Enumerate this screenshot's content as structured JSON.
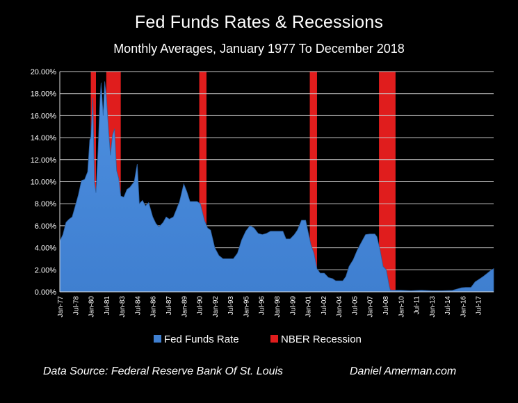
{
  "colors": {
    "background": "#000000",
    "area": "#3f7fd0",
    "recession": "#e01d1d",
    "grid": "#c8c8c8"
  },
  "chart_data": {
    "type": "area",
    "title": "Fed Funds Rates & Recessions",
    "subtitle": "Monthly Averages, January 1977 To December 2018",
    "source": "Data Source:  Federal Reserve Bank Of St. Louis",
    "credit": "Daniel Amerman.com",
    "ylim": [
      0,
      20
    ],
    "yticks": [
      "0.00%",
      "2.00%",
      "4.00%",
      "6.00%",
      "8.00%",
      "10.00%",
      "12.00%",
      "14.00%",
      "16.00%",
      "18.00%",
      "20.00%"
    ],
    "xlim": [
      1977.0,
      2019.0
    ],
    "grid": true,
    "legend_position": "bottom",
    "xticks": [
      {
        "label": "Jan-77",
        "x": 1977.0
      },
      {
        "label": "Jul-78",
        "x": 1978.5
      },
      {
        "label": "Jan-80",
        "x": 1980.0
      },
      {
        "label": "Jul-81",
        "x": 1981.5
      },
      {
        "label": "Jan-83",
        "x": 1983.0
      },
      {
        "label": "Jul-84",
        "x": 1984.5
      },
      {
        "label": "Jan-86",
        "x": 1986.0
      },
      {
        "label": "Jul-87",
        "x": 1987.5
      },
      {
        "label": "Jan-89",
        "x": 1989.0
      },
      {
        "label": "Jul-90",
        "x": 1990.5
      },
      {
        "label": "Jan-92",
        "x": 1992.0
      },
      {
        "label": "Jul-93",
        "x": 1993.5
      },
      {
        "label": "Jan-95",
        "x": 1995.0
      },
      {
        "label": "Jul-96",
        "x": 1996.5
      },
      {
        "label": "Jan-98",
        "x": 1998.0
      },
      {
        "label": "Jul-99",
        "x": 1999.5
      },
      {
        "label": "Jan-01",
        "x": 2001.0
      },
      {
        "label": "Jul-02",
        "x": 2002.5
      },
      {
        "label": "Jan-04",
        "x": 2004.0
      },
      {
        "label": "Jul-05",
        "x": 2005.5
      },
      {
        "label": "Jan-07",
        "x": 2007.0
      },
      {
        "label": "Jul-08",
        "x": 2008.5
      },
      {
        "label": "Jan-10",
        "x": 2010.0
      },
      {
        "label": "Jul-11",
        "x": 2011.5
      },
      {
        "label": "Jan-13",
        "x": 2013.0
      },
      {
        "label": "Jul-14",
        "x": 2014.5
      },
      {
        "label": "Jan-16",
        "x": 2016.0
      },
      {
        "label": "Jul-17",
        "x": 2017.5
      }
    ],
    "series": [
      {
        "name": "Fed Funds Rate",
        "x": [
          1977.0,
          1977.3,
          1977.6,
          1977.9,
          1978.2,
          1978.5,
          1978.8,
          1979.1,
          1979.4,
          1979.7,
          1979.9,
          1980.0,
          1980.2,
          1980.35,
          1980.5,
          1980.7,
          1980.9,
          1981.0,
          1981.2,
          1981.35,
          1981.5,
          1981.7,
          1981.9,
          1982.1,
          1982.3,
          1982.5,
          1982.7,
          1982.9,
          1983.2,
          1983.5,
          1983.8,
          1984.2,
          1984.5,
          1984.7,
          1985.0,
          1985.3,
          1985.6,
          1986.0,
          1986.3,
          1986.6,
          1987.0,
          1987.3,
          1987.6,
          1988.0,
          1988.3,
          1988.6,
          1989.0,
          1989.3,
          1989.6,
          1990.0,
          1990.3,
          1990.6,
          1991.0,
          1991.3,
          1991.6,
          1992.0,
          1992.4,
          1992.8,
          1993.3,
          1993.8,
          1994.2,
          1994.6,
          1995.0,
          1995.4,
          1995.8,
          1996.2,
          1996.6,
          1997.0,
          1997.4,
          1997.8,
          1998.2,
          1998.6,
          1998.9,
          1999.3,
          1999.7,
          2000.0,
          2000.4,
          2000.8,
          2001.0,
          2001.3,
          2001.6,
          2001.9,
          2002.2,
          2002.6,
          2003.0,
          2003.4,
          2003.7,
          2004.0,
          2004.4,
          2004.7,
          2005.0,
          2005.4,
          2005.8,
          2006.2,
          2006.6,
          2007.0,
          2007.5,
          2007.7,
          2008.0,
          2008.3,
          2008.6,
          2008.9,
          2009.0,
          2009.5,
          2010.0,
          2011.0,
          2012.0,
          2013.0,
          2014.0,
          2015.0,
          2015.9,
          2016.3,
          2016.8,
          2017.2,
          2017.6,
          2018.0,
          2018.4,
          2018.8,
          2019.0
        ],
        "values": [
          4.6,
          5.2,
          6.3,
          6.6,
          6.8,
          7.8,
          8.8,
          10.1,
          10.2,
          10.9,
          13.8,
          14.0,
          17.6,
          10.0,
          9.0,
          12.8,
          17.5,
          19.0,
          16.0,
          19.1,
          17.8,
          15.0,
          12.4,
          14.2,
          14.8,
          11.0,
          10.3,
          8.7,
          8.6,
          9.3,
          9.5,
          10.0,
          11.6,
          8.0,
          8.3,
          7.8,
          8.1,
          6.8,
          6.2,
          5.9,
          6.3,
          6.8,
          6.6,
          6.8,
          7.5,
          8.2,
          9.8,
          9.1,
          8.2,
          8.2,
          8.2,
          8.0,
          6.5,
          5.8,
          5.6,
          4.0,
          3.3,
          3.0,
          3.0,
          3.0,
          3.5,
          4.7,
          5.5,
          6.0,
          5.8,
          5.3,
          5.2,
          5.3,
          5.5,
          5.5,
          5.5,
          5.5,
          4.8,
          4.8,
          5.2,
          5.6,
          6.5,
          6.5,
          5.6,
          4.3,
          3.5,
          2.1,
          1.7,
          1.7,
          1.3,
          1.2,
          1.0,
          1.0,
          1.0,
          1.4,
          2.3,
          2.9,
          3.8,
          4.5,
          5.2,
          5.25,
          5.25,
          5.0,
          3.8,
          2.3,
          2.0,
          0.5,
          0.15,
          0.15,
          0.15,
          0.1,
          0.15,
          0.1,
          0.1,
          0.13,
          0.37,
          0.4,
          0.4,
          0.9,
          1.15,
          1.4,
          1.7,
          2.0,
          2.1
        ]
      },
      {
        "name": "NBER Recession",
        "periods": [
          [
            1980.0,
            1980.5
          ],
          [
            1981.5,
            1982.9
          ],
          [
            1990.5,
            1991.2
          ],
          [
            2001.2,
            2001.9
          ],
          [
            2007.9,
            2009.5
          ]
        ]
      }
    ]
  }
}
